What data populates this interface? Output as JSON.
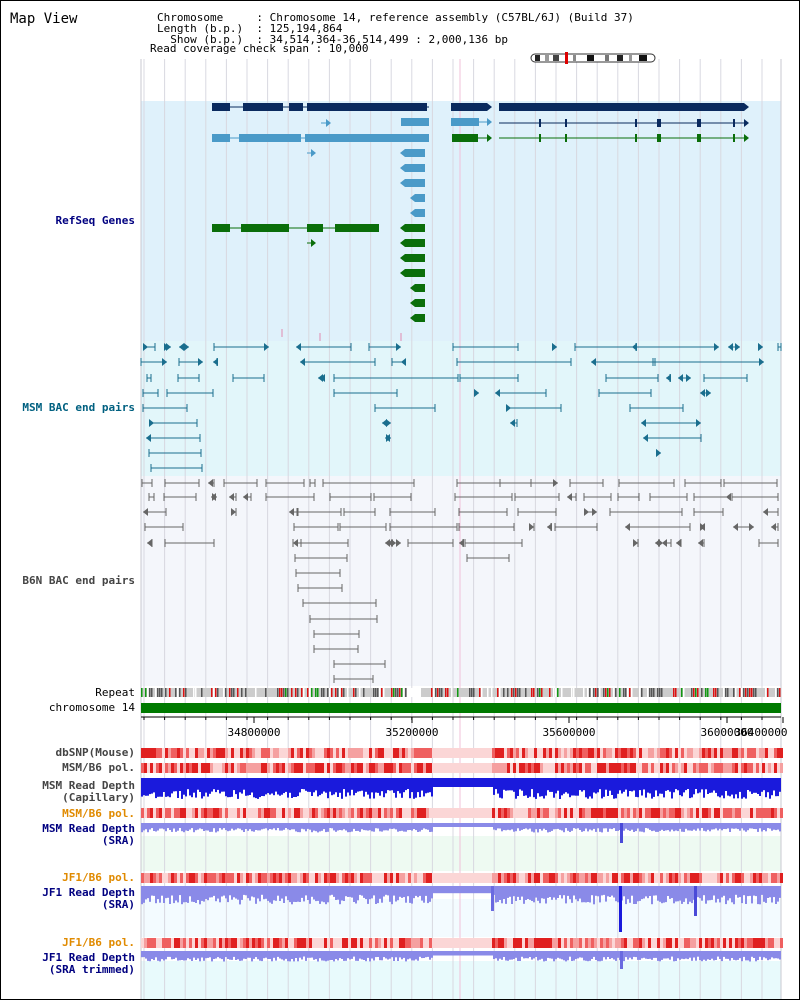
{
  "header": {
    "title": "Map View",
    "info_lines": [
      "Chromosome     : Chromosome 14, reference assembly (C57BL/6J) (Build 37)",
      "Length (b.p.)  : 125,194,864",
      "  Show (b.p.)  : 34,514,364-36,514,499 : 2,000,136 bp",
      "Read coverage check span : 10,000"
    ]
  },
  "tracks": {
    "refseq": "RefSeq Genes",
    "msm_bac": "MSM BAC end pairs",
    "b6n_bac": "B6N BAC end pairs",
    "repeat": "Repeat",
    "chromosome": "chromosome 14",
    "dbsnp": "dbSNP(Mouse)",
    "msm_b6_pol": "MSM/B6 pol.",
    "msm_depth_cap": "MSM Read Depth\n(Capillary)",
    "msm_b6_pol2": "MSM/B6 pol.",
    "msm_depth_sra": "MSM Read Depth\n(SRA)",
    "jf1_b6_pol": "JF1/B6 pol.",
    "jf1_depth_sra": "JF1 Read Depth\n(SRA)",
    "jf1_b6_pol2": "JF1/B6 pol.",
    "jf1_depth_trim": "JF1 Read Depth\n(SRA trimmed)"
  },
  "axis": {
    "ticks": [
      "34800000",
      "35200000",
      "35600000",
      "36000000",
      "36400000"
    ]
  },
  "colors": {
    "refseq_dark": "#0a2a5e",
    "refseq_light": "#4a9ac8",
    "refseq_green": "#0a6e0a",
    "msm_bac": "#1a6e8e",
    "b6n_bac": "#666666",
    "depth_blue": "#1a1adc",
    "depth_light": "#8a8ae8",
    "pol_red": "#e04848",
    "label_navy": "#000080",
    "label_orange": "#e08a00",
    "label_gray": "#444444",
    "label_teal": "#006080"
  }
}
